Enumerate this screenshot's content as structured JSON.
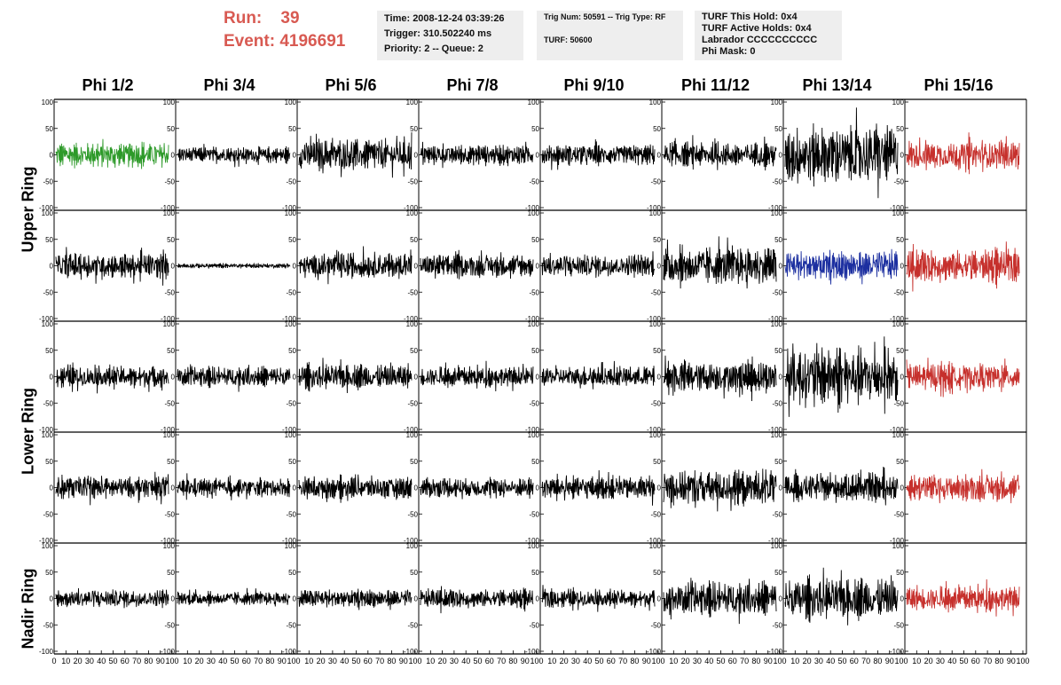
{
  "header": {
    "run_label": "Run:",
    "run_value": "39",
    "event_label": "Event:",
    "event_value": "4196691",
    "time": "Time: 2008-12-24 03:39:26",
    "trigger": "Trigger: 310.502240 ms",
    "priority": "Priority: 2 -- Queue: 2",
    "trig_num": "Trig Num: 50591 -- Trig Type: RF",
    "turf": "TURF: 50600",
    "turf_hold": "TURF This Hold: 0x4",
    "turf_active": "TURF Active Holds: 0x4",
    "labrador": "Labrador CCCCCCCCCC",
    "phi_mask": "Phi Mask: 0"
  },
  "colors": {
    "green": "#2e9a2a",
    "blue": "#1c2fa0",
    "red": "#c6302c",
    "black": "#000000",
    "header_red": "#d85a52",
    "info_bg": "#eeeeee"
  },
  "chart_data": {
    "type": "line",
    "columns": [
      "Phi 1/2",
      "Phi 3/4",
      "Phi 5/6",
      "Phi 7/8",
      "Phi 9/10",
      "Phi 11/12",
      "Phi 13/14",
      "Phi 15/16"
    ],
    "row_labels": [
      "Upper Ring",
      "Lower Ring",
      "Nadir Ring"
    ],
    "ylim": [
      -100,
      100
    ],
    "xlim": [
      0,
      100
    ],
    "y_ticks": [
      "100",
      "50",
      "0",
      "-50",
      "-100"
    ],
    "x_ticks": [
      "0",
      "10",
      "20",
      "30",
      "40",
      "50",
      "60",
      "70",
      "80",
      "90",
      "100"
    ],
    "panel_colors": [
      [
        "green",
        "black",
        "black",
        "black",
        "black",
        "black",
        "black",
        "red"
      ],
      [
        "black",
        "black",
        "black",
        "black",
        "black",
        "black",
        "blue",
        "red"
      ],
      [
        "black",
        "black",
        "black",
        "black",
        "black",
        "black",
        "black",
        "red"
      ],
      [
        "black",
        "black",
        "black",
        "black",
        "black",
        "black",
        "black",
        "red"
      ],
      [
        "black",
        "black",
        "black",
        "black",
        "black",
        "black",
        "black",
        "red"
      ]
    ],
    "panel_amplitudes": [
      [
        22,
        14,
        28,
        18,
        18,
        22,
        52,
        26
      ],
      [
        22,
        4,
        22,
        20,
        20,
        34,
        26,
        28
      ],
      [
        20,
        18,
        22,
        18,
        18,
        28,
        50,
        24
      ],
      [
        20,
        16,
        20,
        18,
        20,
        32,
        24,
        24
      ],
      [
        16,
        12,
        16,
        16,
        16,
        30,
        36,
        22
      ]
    ],
    "samples_per_trace": 260,
    "series_note": ""
  }
}
